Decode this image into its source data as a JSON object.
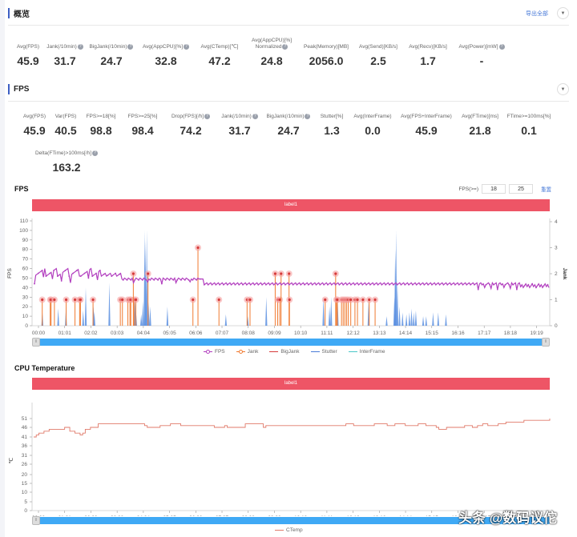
{
  "overview": {
    "title": "概览",
    "export_label": "导出全部",
    "metrics": [
      {
        "label": "Avg(FPS)",
        "value": "45.9",
        "help": false
      },
      {
        "label": "Jank(/10min)",
        "value": "31.7",
        "help": true
      },
      {
        "label": "BigJank(/10min)",
        "value": "24.7",
        "help": true
      },
      {
        "label": "Avg(AppCPU)[%]",
        "value": "32.8",
        "help": true
      },
      {
        "label": "Avg(CTemp)[℃]",
        "value": "47.2",
        "help": false
      },
      {
        "label": "Avg(AppCPU)[%] Normalized",
        "value": "24.8",
        "help": true
      },
      {
        "label": "Peak(Memory)[MB]",
        "value": "2056.0",
        "help": false
      },
      {
        "label": "Avg(Send)[KB/s]",
        "value": "2.5",
        "help": false
      },
      {
        "label": "Avg(Recv)[KB/s]",
        "value": "1.7",
        "help": false
      },
      {
        "label": "Avg(Power)[mW]",
        "value": "-",
        "help": true
      }
    ]
  },
  "fps_section": {
    "title": "FPS",
    "metrics": [
      {
        "label": "Avg(FPS)",
        "value": "45.9",
        "help": false
      },
      {
        "label": "Var(FPS)",
        "value": "40.5",
        "help": false
      },
      {
        "label": "FPS>=18[%]",
        "value": "98.8",
        "help": false
      },
      {
        "label": "FPS>=25[%]",
        "value": "98.4",
        "help": false
      },
      {
        "label": "Drop(FPS)[/h]",
        "value": "74.2",
        "help": true
      },
      {
        "label": "Jank(/10min)",
        "value": "31.7",
        "help": true
      },
      {
        "label": "BigJank(/10min)",
        "value": "24.7",
        "help": true
      },
      {
        "label": "Stutter[%]",
        "value": "1.3",
        "help": false
      },
      {
        "label": "Avg(InterFrame)",
        "value": "0.0",
        "help": false
      },
      {
        "label": "Avg(FPS+InterFrame)",
        "value": "45.9",
        "help": false
      },
      {
        "label": "Avg(FTime)[ms]",
        "value": "21.8",
        "help": false
      },
      {
        "label": "FTime>=100ms[%]",
        "value": "0.1",
        "help": false
      }
    ],
    "extra_metric": {
      "label": "Delta(FTime)>100ms[/h]",
      "value": "163.2",
      "help": true
    }
  },
  "fps_chart": {
    "title": "FPS",
    "label_bar": "label1",
    "threshold_label": "FPS(>=)",
    "threshold_1": "18",
    "threshold_2": "25",
    "reset_label": "重置",
    "y_left_label": "FPS",
    "y_right_label": "Jank",
    "legend": [
      {
        "name": "FPS",
        "color": "#b23fbf"
      },
      {
        "name": "Jank",
        "color": "#f07a30"
      },
      {
        "name": "BigJank",
        "color": "#d63a3a"
      },
      {
        "name": "Stutter",
        "color": "#4a7bd8"
      },
      {
        "name": "InterFrame",
        "color": "#4ac6c8"
      }
    ]
  },
  "temp_chart": {
    "title": "CPU Temperature",
    "label_bar": "label1",
    "y_label": "℃",
    "legend": [
      {
        "name": "CTemp",
        "color": "#e07a6a"
      }
    ]
  },
  "watermark": "头条 @数码议佗",
  "chart_data": [
    {
      "type": "line",
      "title": "FPS",
      "xlabel": "",
      "ylabel": "FPS",
      "y2label": "Jank",
      "ylim": [
        0,
        110
      ],
      "y2lim": [
        0,
        4
      ],
      "y_ticks": [
        0,
        10,
        20,
        30,
        40,
        50,
        60,
        70,
        80,
        90,
        100,
        110
      ],
      "y2_ticks": [
        0,
        1,
        2,
        3,
        4
      ],
      "x_ticks": [
        "00:00",
        "01:01",
        "02:02",
        "03:03",
        "04:04",
        "05:05",
        "06:06",
        "07:07",
        "08:08",
        "09:09",
        "10:10",
        "11:11",
        "12:12",
        "13:13",
        "14:14",
        "15:15",
        "16:16",
        "17:17",
        "18:18",
        "19:19"
      ],
      "series": [
        {
          "name": "FPS",
          "x": [
            "00:00",
            "01:01",
            "02:02",
            "03:03",
            "04:04",
            "05:05",
            "06:06",
            "07:07",
            "08:08",
            "09:09",
            "10:10",
            "11:11",
            "12:12",
            "13:13",
            "14:14",
            "15:15",
            "16:16",
            "17:17",
            "18:18",
            "19:19"
          ],
          "values": [
            58,
            56,
            55,
            49,
            49,
            48,
            49,
            44,
            44,
            44,
            44,
            44,
            44,
            44,
            44,
            44,
            44,
            44,
            43,
            42
          ]
        },
        {
          "name": "Jank",
          "x": [
            "00:09",
            "00:46",
            "00:48",
            "01:05",
            "01:40",
            "02:10",
            "02:30",
            "02:33",
            "03:20",
            "05:00",
            "05:05",
            "05:20",
            "05:30",
            "05:33",
            "05:40",
            "05:44",
            "06:35",
            "09:05",
            "10:07",
            "11:11",
            "12:30",
            "13:56",
            "14:06",
            "14:12",
            "14:38",
            "16:21",
            "17:10",
            "17:17",
            "17:30",
            "17:40",
            "17:48",
            "17:55",
            "18:05",
            "18:22",
            "18:30",
            "18:55",
            "19:19",
            "19:45"
          ],
          "values": [
            1,
            1,
            1,
            1,
            1,
            1,
            1,
            1,
            1,
            1,
            1,
            1,
            1,
            1,
            2,
            1,
            2,
            1,
            3,
            1,
            3,
            2,
            1,
            2,
            2,
            1,
            2,
            1,
            1,
            1,
            1,
            1,
            1,
            1,
            1,
            1,
            1,
            1
          ]
        },
        {
          "name": "BigJank",
          "values": []
        },
        {
          "name": "Stutter",
          "peak": 100
        },
        {
          "name": "InterFrame",
          "values": []
        }
      ],
      "legend_position": "bottom",
      "grid": false
    },
    {
      "type": "line",
      "title": "CPU Temperature",
      "ylabel": "℃",
      "ylim": [
        0,
        53
      ],
      "y_ticks": [
        0,
        5,
        10,
        15,
        20,
        26,
        31,
        36,
        41,
        46,
        51
      ],
      "x_ticks": [
        "00:00",
        "01:01",
        "02:02",
        "03:03",
        "04:04",
        "05:05",
        "06:06",
        "07:07",
        "08:08",
        "09:09",
        "10:10",
        "11:11",
        "12:12",
        "13:13",
        "14:14",
        "15:15",
        "16:16",
        "17:17",
        "18:18",
        "19:19"
      ],
      "series": [
        {
          "name": "CTemp",
          "values": [
            41,
            45,
            48,
            47,
            47,
            47,
            48,
            47,
            47,
            47,
            48,
            48,
            48,
            47,
            47,
            47,
            46,
            46,
            48,
            50
          ]
        }
      ],
      "legend_position": "bottom",
      "grid": false
    }
  ]
}
